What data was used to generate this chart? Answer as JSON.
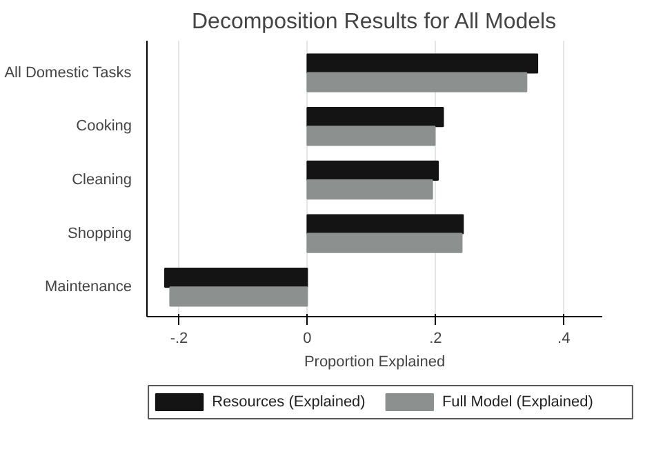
{
  "chart_data": {
    "type": "bar",
    "orientation": "horizontal",
    "title": "Decomposition Results for All Models",
    "xlabel": "Proportion Explained",
    "categories": [
      "All Domestic Tasks",
      "Cooking",
      "Cleaning",
      "Shopping",
      "Maintenance"
    ],
    "series": [
      {
        "name": "Resources (Explained)",
        "color": "#141414",
        "values": [
          0.359,
          0.212,
          0.204,
          0.243,
          -0.222
        ]
      },
      {
        "name": "Full Model (Explained)",
        "color": "#8c9190",
        "values": [
          0.342,
          0.199,
          0.195,
          0.241,
          -0.214
        ]
      }
    ],
    "xlim": [
      -0.25,
      0.46
    ],
    "xticks": [
      {
        "value": -0.2,
        "label": "-.2"
      },
      {
        "value": 0,
        "label": "0"
      },
      {
        "value": 0.2,
        "label": ".2"
      },
      {
        "value": 0.4,
        "label": ".4"
      }
    ],
    "grid": "x",
    "legend": "bottom"
  }
}
